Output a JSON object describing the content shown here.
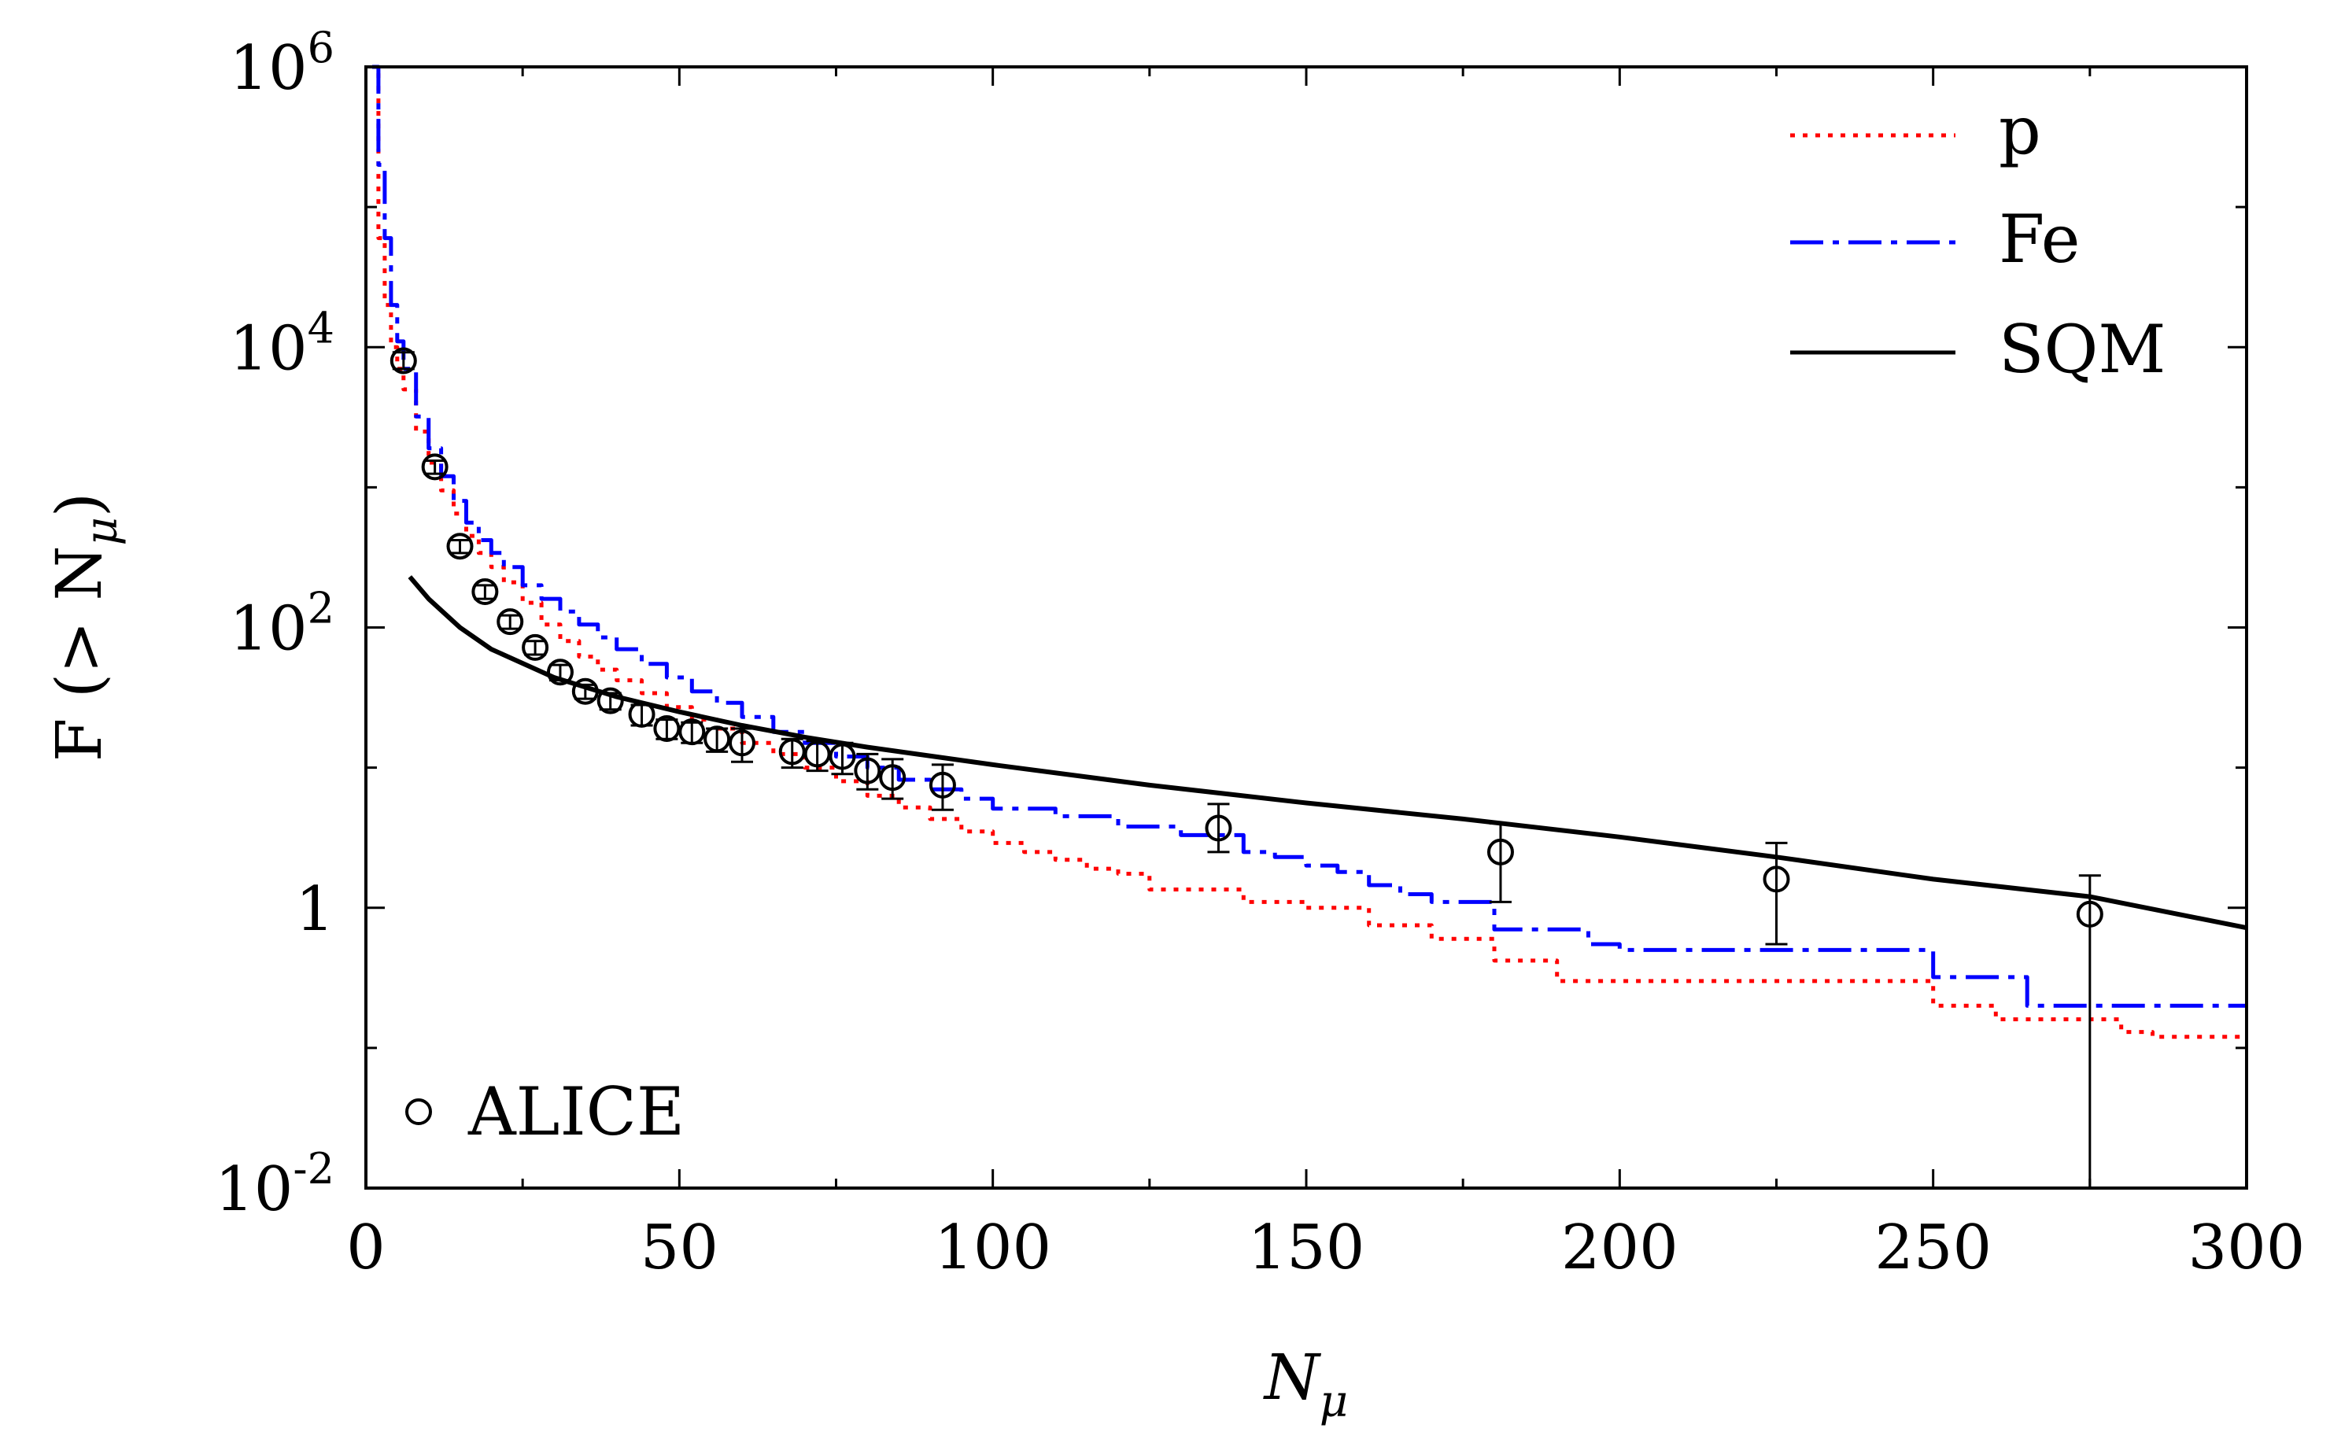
{
  "chart_data": {
    "type": "line",
    "title": "",
    "xlabel": "N",
    "xlabel_sub": "μ",
    "ylabel_prefix": "F (> N",
    "ylabel_sub": "μ",
    "ylabel_suffix": ")",
    "xlim": [
      0,
      300
    ],
    "ylim_log10": [
      -2,
      6
    ],
    "yscale": "log",
    "x_ticks": [
      "0",
      "50",
      "100",
      "150",
      "200",
      "250",
      "300"
    ],
    "x_tick_values": [
      0,
      50,
      100,
      150,
      200,
      250,
      300
    ],
    "y_ticks": [
      {
        "value": 0.01,
        "base": "10",
        "exp": "-2"
      },
      {
        "value": 1,
        "base": "1",
        "exp": ""
      },
      {
        "value": 100,
        "base": "10",
        "exp": "2"
      },
      {
        "value": 10000,
        "base": "10",
        "exp": "4"
      },
      {
        "value": 1000000,
        "base": "10",
        "exp": "6"
      }
    ],
    "legend_position": "top-right",
    "series": [
      {
        "name": "p",
        "style": "dotted",
        "color": "#ff0000",
        "x": [
          1,
          2,
          3,
          4,
          5,
          6,
          8,
          10,
          12,
          14,
          16,
          18,
          20,
          22,
          25,
          28,
          31,
          34,
          37,
          40,
          44,
          48,
          52,
          56,
          60,
          65,
          70,
          75,
          80,
          85,
          90,
          95,
          100,
          105,
          110,
          115,
          120,
          125,
          130,
          140,
          150,
          160,
          170,
          180,
          190,
          200,
          250,
          260,
          270,
          280,
          285,
          300
        ],
        "y": [
          1000000,
          60000,
          20000,
          10000,
          7000,
          5000,
          2500,
          1500,
          950,
          650,
          450,
          340,
          270,
          210,
          150,
          105,
          80,
          62,
          50,
          42,
          34,
          27,
          22,
          19,
          15,
          12.5,
          10,
          8,
          6.3,
          5.2,
          4.3,
          3.5,
          2.9,
          2.5,
          2.2,
          1.9,
          1.75,
          1.35,
          1.35,
          1.1,
          1.0,
          0.75,
          0.6,
          0.42,
          0.3,
          0.3,
          0.2,
          0.16,
          0.16,
          0.13,
          0.12,
          0.12
        ]
      },
      {
        "name": "Fe",
        "style": "dashdot",
        "color": "#0000ff",
        "x": [
          1,
          2,
          3,
          4,
          5,
          6,
          8,
          10,
          12,
          14,
          16,
          18,
          20,
          22,
          25,
          28,
          31,
          34,
          37,
          40,
          44,
          48,
          52,
          56,
          60,
          65,
          70,
          75,
          80,
          85,
          90,
          95,
          100,
          110,
          120,
          130,
          140,
          145,
          150,
          155,
          160,
          165,
          170,
          180,
          195,
          200,
          250,
          265,
          300
        ],
        "y": [
          1000000,
          200000,
          60000,
          20000,
          11000,
          7000,
          3200,
          1900,
          1200,
          800,
          560,
          420,
          340,
          270,
          200,
          160,
          130,
          105,
          85,
          70,
          55,
          44,
          35,
          29,
          23,
          18,
          15,
          12,
          10,
          8.2,
          7,
          6,
          5.1,
          4.5,
          3.8,
          3.3,
          2.5,
          2.3,
          2.0,
          1.8,
          1.45,
          1.25,
          1.1,
          0.7,
          0.55,
          0.5,
          0.32,
          0.2,
          0.2
        ]
      },
      {
        "name": "SQM",
        "style": "solid",
        "color": "#000000",
        "x": [
          7,
          10,
          15,
          20,
          30,
          40,
          50,
          60,
          70,
          80,
          100,
          125,
          150,
          175,
          200,
          225,
          250,
          275,
          300
        ],
        "y": [
          230,
          160,
          100,
          70,
          44,
          32,
          25,
          20,
          16.5,
          14,
          10.5,
          7.5,
          5.6,
          4.3,
          3.2,
          2.3,
          1.6,
          1.2,
          0.72
        ]
      }
    ],
    "markers": {
      "name": "ALICE",
      "symbol": "open-circle",
      "points": [
        {
          "x": 6,
          "y": 8000,
          "lo": 7000,
          "hi": 9200
        },
        {
          "x": 11,
          "y": 1400,
          "lo": 1250,
          "hi": 1550
        },
        {
          "x": 15,
          "y": 380,
          "lo": 340,
          "hi": 420
        },
        {
          "x": 19,
          "y": 180,
          "lo": 160,
          "hi": 200
        },
        {
          "x": 23,
          "y": 110,
          "lo": 98,
          "hi": 122
        },
        {
          "x": 27,
          "y": 72,
          "lo": 64,
          "hi": 80
        },
        {
          "x": 31,
          "y": 48,
          "lo": 42,
          "hi": 54
        },
        {
          "x": 35,
          "y": 35,
          "lo": 31,
          "hi": 39
        },
        {
          "x": 39,
          "y": 30,
          "lo": 26,
          "hi": 34
        },
        {
          "x": 44,
          "y": 24,
          "lo": 20,
          "hi": 28
        },
        {
          "x": 48,
          "y": 19,
          "lo": 16,
          "hi": 22
        },
        {
          "x": 52,
          "y": 18,
          "lo": 15,
          "hi": 21
        },
        {
          "x": 56,
          "y": 16,
          "lo": 13,
          "hi": 19
        },
        {
          "x": 60,
          "y": 15,
          "lo": 11,
          "hi": 19
        },
        {
          "x": 68,
          "y": 13,
          "lo": 10,
          "hi": 16
        },
        {
          "x": 72,
          "y": 12.5,
          "lo": 9.5,
          "hi": 15.5
        },
        {
          "x": 76,
          "y": 12,
          "lo": 9,
          "hi": 15
        },
        {
          "x": 80,
          "y": 9.5,
          "lo": 7,
          "hi": 12.5
        },
        {
          "x": 84,
          "y": 8.5,
          "lo": 6,
          "hi": 11.5
        },
        {
          "x": 92,
          "y": 7.5,
          "lo": 5,
          "hi": 10.5
        },
        {
          "x": 136,
          "y": 3.7,
          "lo": 2.5,
          "hi": 5.5
        },
        {
          "x": 181,
          "y": 2.5,
          "lo": 1.1,
          "hi": 4.0
        },
        {
          "x": 225,
          "y": 1.6,
          "lo": 0.55,
          "hi": 2.9
        },
        {
          "x": 275,
          "y": 0.9,
          "lo": 0.01,
          "hi": 1.7
        }
      ]
    }
  },
  "legend": {
    "p": "p",
    "fe": "Fe",
    "sqm": "SQM",
    "alice": "ALICE"
  }
}
